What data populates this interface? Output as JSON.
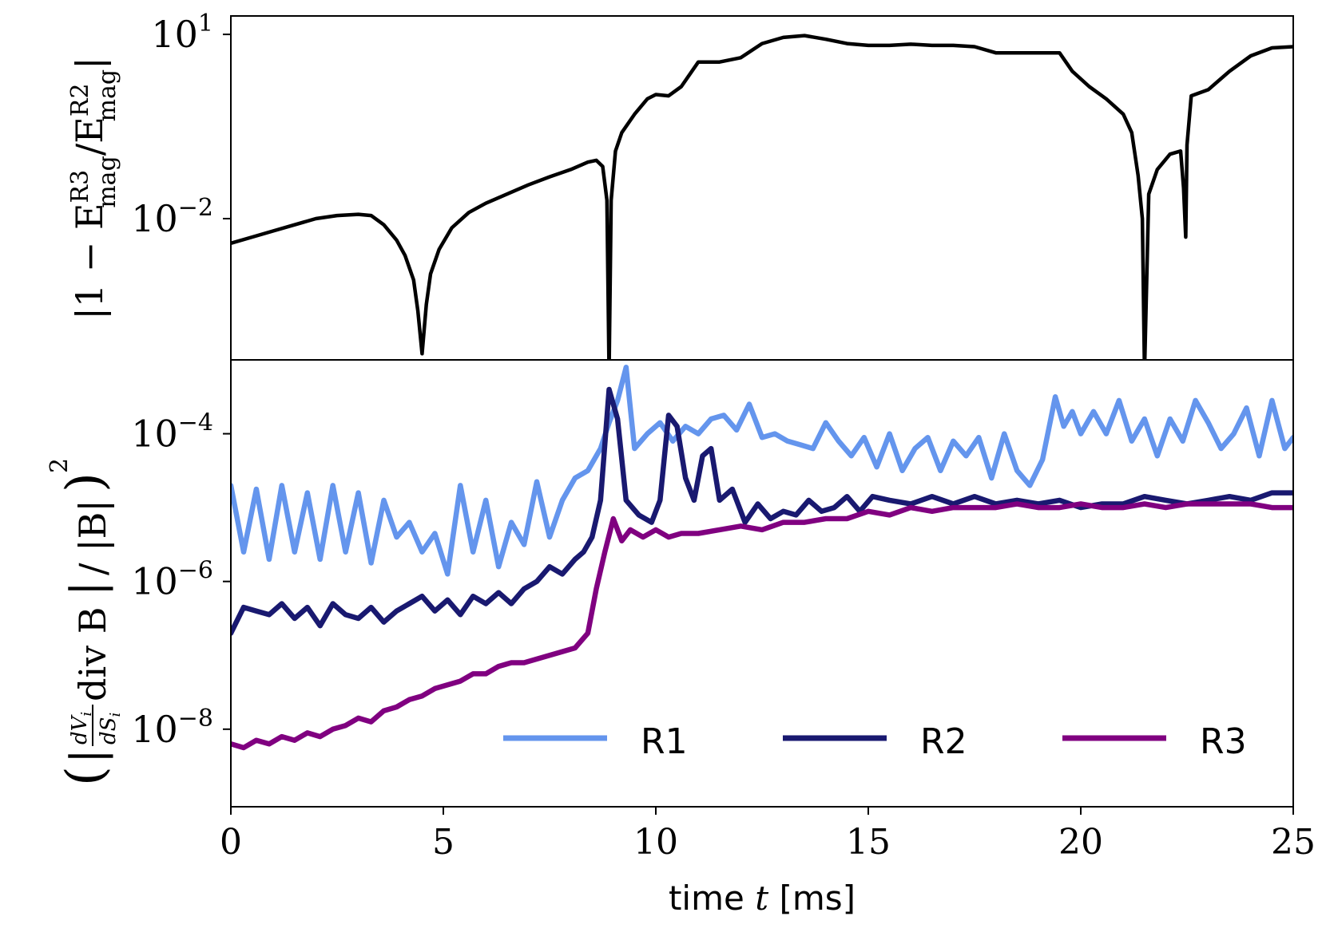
{
  "chart_data": [
    {
      "type": "line",
      "panel": "top",
      "ylabel": "|1 − E_mag^R3 / E_mag^R2|",
      "ylabel_parts": {
        "lead": "|1 − E",
        "sup1": "R3",
        "sub1": "mag",
        "slash": "/E",
        "sup2": "R2",
        "sub2": "mag",
        "tail": "|"
      },
      "yscale": "log",
      "ylim_log10": [
        -4.3,
        1.3
      ],
      "yticks": [
        {
          "log10": 1,
          "base": "10",
          "exp": "1"
        },
        {
          "log10": -2,
          "base": "10",
          "exp": "−2"
        }
      ],
      "series": [
        {
          "name": "|1-E_R3/E_R2|",
          "color": "#000000",
          "x": [
            0,
            0.5,
            1,
            1.5,
            2,
            2.5,
            3,
            3.3,
            3.6,
            3.9,
            4.1,
            4.3,
            4.4,
            4.5,
            4.6,
            4.7,
            4.9,
            5.2,
            5.6,
            6,
            6.5,
            7,
            7.5,
            8,
            8.4,
            8.6,
            8.75,
            8.85,
            8.9,
            8.95,
            9.05,
            9.2,
            9.5,
            9.8,
            10,
            10.3,
            10.6,
            11,
            11.5,
            12,
            12.5,
            13,
            13.5,
            14,
            14.5,
            15,
            15.5,
            16,
            16.5,
            17,
            17.5,
            18,
            18.5,
            19,
            19.5,
            19.8,
            20.2,
            20.6,
            21,
            21.2,
            21.35,
            21.45,
            21.5,
            21.6,
            21.8,
            22.1,
            22.35,
            22.42,
            22.47,
            22.5,
            22.6,
            23,
            23.5,
            24,
            24.5,
            25
          ],
          "y_log10": [
            -2.4,
            -2.3,
            -2.2,
            -2.1,
            -2.0,
            -1.95,
            -1.93,
            -1.95,
            -2.1,
            -2.35,
            -2.6,
            -3.0,
            -3.5,
            -4.2,
            -3.4,
            -2.9,
            -2.5,
            -2.15,
            -1.9,
            -1.75,
            -1.6,
            -1.45,
            -1.32,
            -1.2,
            -1.08,
            -1.05,
            -1.15,
            -1.7,
            -4.5,
            -1.7,
            -0.9,
            -0.6,
            -0.3,
            -0.05,
            0.02,
            0.0,
            0.15,
            0.55,
            0.55,
            0.62,
            0.85,
            0.95,
            0.98,
            0.92,
            0.85,
            0.82,
            0.82,
            0.84,
            0.82,
            0.82,
            0.8,
            0.7,
            0.7,
            0.7,
            0.7,
            0.4,
            0.15,
            -0.05,
            -0.3,
            -0.6,
            -1.3,
            -2.0,
            -4.5,
            -1.6,
            -1.2,
            -0.95,
            -0.9,
            -1.5,
            -2.3,
            -0.8,
            0.0,
            0.1,
            0.4,
            0.65,
            0.78,
            0.8
          ]
        }
      ]
    },
    {
      "type": "line",
      "panel": "bottom",
      "ylabel": "(|dV_i/dS_i div B| / |B|)^2",
      "ylabel_parts": {
        "num": "dV",
        "num_sub": "i",
        "den": "dS",
        "den_sub": "i",
        "mid": "div B",
        "tail": "/ |B|",
        "power": "2"
      },
      "yscale": "log",
      "ylim_log10": [
        -9.05,
        -3.0
      ],
      "yticks": [
        {
          "log10": -4,
          "base": "10",
          "exp": "−4"
        },
        {
          "log10": -6,
          "base": "10",
          "exp": "−6"
        },
        {
          "log10": -8,
          "base": "10",
          "exp": "−8"
        }
      ],
      "xlabel": "time t [ms]",
      "xlabel_parts": {
        "a": "time ",
        "b": "t",
        "c": " [ms]"
      },
      "xlim": [
        0,
        25
      ],
      "xticks": [
        "0",
        "5",
        "10",
        "15",
        "20",
        "25"
      ],
      "legend": {
        "position": "lower-right",
        "entries": [
          "R1",
          "R2",
          "R3"
        ]
      },
      "series": [
        {
          "name": "R1",
          "color": "#6495ED",
          "x": [
            0,
            0.3,
            0.6,
            0.9,
            1.2,
            1.5,
            1.8,
            2.1,
            2.4,
            2.7,
            3,
            3.3,
            3.6,
            3.9,
            4.2,
            4.5,
            4.8,
            5.1,
            5.4,
            5.7,
            6,
            6.3,
            6.6,
            6.9,
            7.2,
            7.5,
            7.8,
            8.1,
            8.4,
            8.7,
            8.9,
            9.1,
            9.3,
            9.5,
            9.8,
            10.1,
            10.4,
            10.7,
            11,
            11.3,
            11.6,
            11.9,
            12.2,
            12.5,
            12.8,
            13.1,
            13.4,
            13.7,
            14,
            14.3,
            14.6,
            14.9,
            15.2,
            15.5,
            15.8,
            16.1,
            16.4,
            16.7,
            17,
            17.3,
            17.6,
            17.9,
            18.2,
            18.5,
            18.8,
            19.1,
            19.4,
            19.6,
            19.8,
            20,
            20.3,
            20.6,
            20.9,
            21.2,
            21.5,
            21.8,
            22.1,
            22.4,
            22.7,
            23,
            23.3,
            23.6,
            23.9,
            24.2,
            24.5,
            24.8,
            25
          ],
          "y_log10": [
            -4.7,
            -5.6,
            -4.75,
            -5.7,
            -4.7,
            -5.6,
            -4.8,
            -5.7,
            -4.7,
            -5.6,
            -4.8,
            -5.75,
            -4.9,
            -5.4,
            -5.2,
            -5.6,
            -5.35,
            -5.9,
            -4.7,
            -5.6,
            -4.9,
            -5.8,
            -5.2,
            -5.5,
            -4.65,
            -5.4,
            -4.9,
            -4.6,
            -4.5,
            -4.2,
            -3.85,
            -3.55,
            -3.1,
            -4.2,
            -4.0,
            -3.85,
            -4.1,
            -3.9,
            -4.0,
            -3.8,
            -3.75,
            -3.95,
            -3.6,
            -4.05,
            -4.0,
            -4.1,
            -4.15,
            -4.2,
            -3.85,
            -4.1,
            -4.3,
            -4.05,
            -4.45,
            -4.0,
            -4.5,
            -4.2,
            -4.05,
            -4.5,
            -4.1,
            -4.3,
            -4.05,
            -4.6,
            -4.0,
            -4.5,
            -4.7,
            -4.35,
            -3.5,
            -3.9,
            -3.7,
            -4.0,
            -3.7,
            -4.0,
            -3.55,
            -4.1,
            -3.8,
            -4.3,
            -3.8,
            -4.1,
            -3.55,
            -3.85,
            -4.2,
            -4.0,
            -3.65,
            -4.3,
            -3.55,
            -4.2,
            -4.05
          ]
        },
        {
          "name": "R2",
          "color": "#191970",
          "x": [
            0,
            0.3,
            0.6,
            0.9,
            1.2,
            1.5,
            1.8,
            2.1,
            2.4,
            2.7,
            3,
            3.3,
            3.6,
            3.9,
            4.2,
            4.5,
            4.8,
            5.1,
            5.4,
            5.7,
            6,
            6.3,
            6.6,
            6.9,
            7.2,
            7.5,
            7.8,
            8.1,
            8.3,
            8.5,
            8.7,
            8.9,
            9.1,
            9.3,
            9.6,
            9.9,
            10.1,
            10.3,
            10.5,
            10.7,
            10.9,
            11.1,
            11.3,
            11.5,
            11.8,
            12.1,
            12.4,
            12.7,
            13,
            13.3,
            13.6,
            13.9,
            14.2,
            14.5,
            14.8,
            15.1,
            15.5,
            16,
            16.5,
            17,
            17.5,
            18,
            18.5,
            19,
            19.5,
            20,
            20.5,
            21,
            21.5,
            22,
            22.5,
            23,
            23.5,
            24,
            24.5,
            25
          ],
          "y_log10": [
            -6.7,
            -6.35,
            -6.4,
            -6.45,
            -6.3,
            -6.5,
            -6.35,
            -6.6,
            -6.3,
            -6.45,
            -6.5,
            -6.35,
            -6.55,
            -6.4,
            -6.3,
            -6.2,
            -6.4,
            -6.25,
            -6.45,
            -6.2,
            -6.3,
            -6.15,
            -6.3,
            -6.1,
            -6.0,
            -5.8,
            -5.9,
            -5.7,
            -5.6,
            -5.4,
            -4.9,
            -3.4,
            -3.8,
            -4.9,
            -5.1,
            -5.2,
            -4.9,
            -3.75,
            -3.9,
            -4.6,
            -4.9,
            -4.3,
            -4.2,
            -4.9,
            -4.75,
            -5.2,
            -4.95,
            -5.15,
            -5.05,
            -5.1,
            -4.9,
            -5.05,
            -5.0,
            -4.85,
            -5.05,
            -4.85,
            -4.9,
            -4.95,
            -4.85,
            -4.95,
            -4.85,
            -4.95,
            -4.9,
            -4.95,
            -4.9,
            -5.0,
            -4.95,
            -4.95,
            -4.85,
            -4.9,
            -4.95,
            -4.9,
            -4.85,
            -4.9,
            -4.8,
            -4.8
          ]
        },
        {
          "name": "R3",
          "color": "#800080",
          "x": [
            0,
            0.3,
            0.6,
            0.9,
            1.2,
            1.5,
            1.8,
            2.1,
            2.4,
            2.7,
            3,
            3.3,
            3.6,
            3.9,
            4.2,
            4.5,
            4.8,
            5.1,
            5.4,
            5.7,
            6,
            6.3,
            6.6,
            6.9,
            7.2,
            7.5,
            7.8,
            8.1,
            8.4,
            8.6,
            8.8,
            9.0,
            9.2,
            9.4,
            9.7,
            10,
            10.3,
            10.6,
            11,
            11.5,
            12,
            12.5,
            13,
            13.5,
            14,
            14.5,
            15,
            15.5,
            16,
            16.5,
            17,
            17.5,
            18,
            18.5,
            19,
            19.5,
            20,
            20.5,
            21,
            21.5,
            22,
            22.5,
            23,
            23.5,
            24,
            24.5,
            25
          ],
          "y_log10": [
            -8.2,
            -8.25,
            -8.15,
            -8.2,
            -8.1,
            -8.15,
            -8.05,
            -8.1,
            -8.0,
            -7.95,
            -7.85,
            -7.9,
            -7.75,
            -7.7,
            -7.6,
            -7.55,
            -7.45,
            -7.4,
            -7.35,
            -7.25,
            -7.25,
            -7.15,
            -7.1,
            -7.1,
            -7.05,
            -7.0,
            -6.95,
            -6.9,
            -6.7,
            -6.1,
            -5.6,
            -5.15,
            -5.45,
            -5.3,
            -5.4,
            -5.3,
            -5.4,
            -5.35,
            -5.35,
            -5.3,
            -5.25,
            -5.3,
            -5.2,
            -5.2,
            -5.15,
            -5.15,
            -5.05,
            -5.1,
            -5.0,
            -5.05,
            -5.0,
            -5.0,
            -5.0,
            -4.95,
            -5.0,
            -5.0,
            -4.95,
            -5.0,
            -5.0,
            -4.95,
            -5.0,
            -4.95,
            -4.95,
            -4.95,
            -4.95,
            -5.0,
            -5.0
          ]
        }
      ]
    }
  ]
}
